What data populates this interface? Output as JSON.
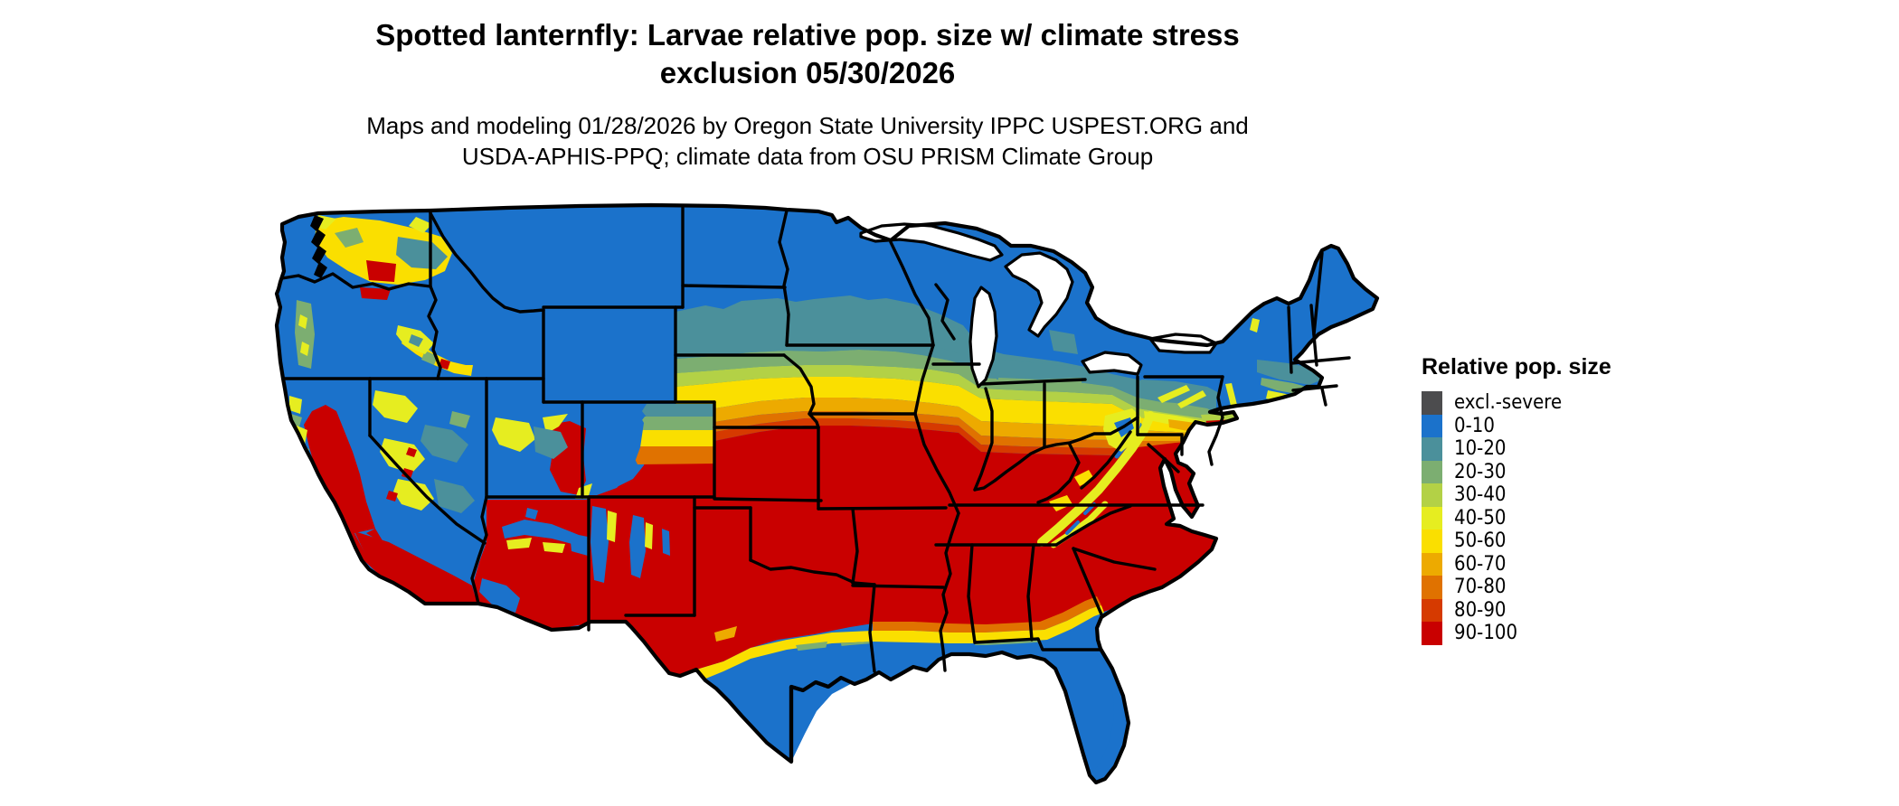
{
  "title": {
    "line1": "Spotted lanternfly: Larvae relative pop. size w/ climate stress",
    "line2": "exclusion 05/30/2026"
  },
  "subtitle": {
    "line1": "Maps and modeling 01/28/2026 by Oregon State University IPPC USPEST.ORG and",
    "line2": "USDA-APHIS-PPQ; climate data from OSU PRISM Climate Group"
  },
  "legend": {
    "title": "Relative pop. size",
    "items": [
      {
        "label": "excl.-severe",
        "color": "#4c4c4e"
      },
      {
        "label": "0-10",
        "color": "#1b72cb"
      },
      {
        "label": "10-20",
        "color": "#4b909b"
      },
      {
        "label": "20-30",
        "color": "#7cae71"
      },
      {
        "label": "30-40",
        "color": "#b3d146"
      },
      {
        "label": "40-50",
        "color": "#e6ed20"
      },
      {
        "label": "50-60",
        "color": "#fadf00"
      },
      {
        "label": "60-70",
        "color": "#edaa00"
      },
      {
        "label": "70-80",
        "color": "#e07200"
      },
      {
        "label": "80-90",
        "color": "#d63a00"
      },
      {
        "label": "90-100",
        "color": "#c90000"
      }
    ]
  }
}
